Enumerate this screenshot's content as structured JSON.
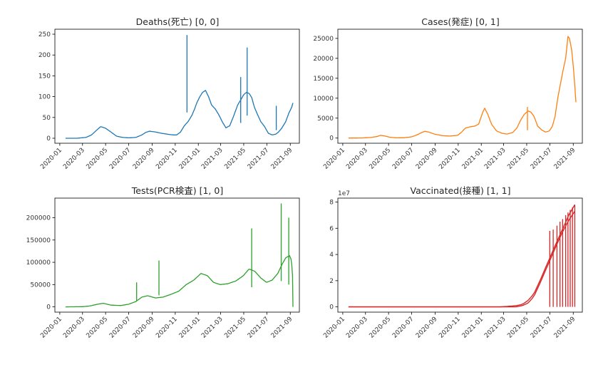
{
  "chart_data": [
    {
      "type": "line",
      "title": "Deaths(死亡) [0, 0]",
      "color": "#1f77b4",
      "x_ticks": [
        "2020-01",
        "2020-03",
        "2020-05",
        "2020-07",
        "2020-09",
        "2020-11",
        "2021-01",
        "2021-03",
        "2021-05",
        "2021-07",
        "2021-09"
      ],
      "xlim": [
        "2019-12-19",
        "2021-09-25"
      ],
      "ylim": [
        -12,
        262
      ],
      "y_ticks": [
        "0",
        "50",
        "100",
        "150",
        "200",
        "250"
      ],
      "y_tick_values": [
        0,
        50,
        100,
        150,
        200,
        250
      ],
      "series": [
        {
          "x": [
            "2020-01-16",
            "2020-02-15",
            "2020-03-10",
            "2020-03-25",
            "2020-04-08",
            "2020-04-18",
            "2020-05-01",
            "2020-05-15",
            "2020-05-30",
            "2020-06-15",
            "2020-07-01",
            "2020-07-20",
            "2020-08-05",
            "2020-08-15",
            "2020-08-25",
            "2020-09-10",
            "2020-09-25",
            "2020-10-10",
            "2020-10-25",
            "2020-11-05",
            "2020-11-15",
            "2020-11-25",
            "2020-12-05",
            "2020-12-15",
            "2020-12-22",
            "2020-12-28",
            "2021-01-05",
            "2021-01-12",
            "2021-01-20",
            "2021-01-28",
            "2021-02-05",
            "2021-02-15",
            "2021-02-25",
            "2021-03-05",
            "2021-03-15",
            "2021-03-25",
            "2021-04-05",
            "2021-04-15",
            "2021-04-25",
            "2021-05-01",
            "2021-05-08",
            "2021-05-15",
            "2021-05-22",
            "2021-05-29",
            "2021-06-05",
            "2021-06-15",
            "2021-06-25",
            "2021-07-05",
            "2021-07-15",
            "2021-07-25",
            "2021-08-01",
            "2021-08-10",
            "2021-08-20",
            "2021-08-28",
            "2021-09-05",
            "2021-09-08"
          ],
          "y": [
            0,
            0,
            2,
            8,
            20,
            28,
            24,
            15,
            5,
            2,
            1,
            2,
            8,
            14,
            17,
            15,
            12,
            10,
            8,
            8,
            15,
            30,
            40,
            55,
            70,
            85,
            100,
            110,
            115,
            100,
            80,
            70,
            55,
            40,
            25,
            30,
            55,
            80,
            95,
            105,
            110,
            108,
            98,
            75,
            60,
            40,
            28,
            12,
            8,
            10,
            15,
            25,
            40,
            60,
            75,
            85
          ]
        }
      ],
      "spikes": [
        {
          "x": "2020-12-02",
          "y": 248
        },
        {
          "x": "2021-05-10",
          "y": 218
        },
        {
          "x": "2021-04-23",
          "y": 147
        },
        {
          "x": "2021-07-26",
          "y": 78
        }
      ]
    },
    {
      "type": "line",
      "title": "Cases(発症) [0, 1]",
      "color": "#ff7f0e",
      "x_ticks": [
        "2020-01",
        "2020-03",
        "2020-05",
        "2020-07",
        "2020-09",
        "2020-11",
        "2021-01",
        "2021-03",
        "2021-05",
        "2021-07",
        "2021-09"
      ],
      "xlim": [
        "2019-12-19",
        "2021-09-25"
      ],
      "ylim": [
        -1300,
        27300
      ],
      "y_ticks": [
        "0",
        "5000",
        "10000",
        "15000",
        "20000",
        "25000"
      ],
      "y_tick_values": [
        0,
        5000,
        10000,
        15000,
        20000,
        25000
      ],
      "series": [
        {
          "x": [
            "2020-01-16",
            "2020-02-20",
            "2020-03-15",
            "2020-04-01",
            "2020-04-10",
            "2020-04-22",
            "2020-05-05",
            "2020-05-20",
            "2020-06-10",
            "2020-07-01",
            "2020-07-15",
            "2020-07-28",
            "2020-08-05",
            "2020-08-15",
            "2020-08-30",
            "2020-09-20",
            "2020-10-10",
            "2020-10-31",
            "2020-11-10",
            "2020-11-20",
            "2020-12-01",
            "2020-12-15",
            "2020-12-25",
            "2021-01-05",
            "2021-01-10",
            "2021-01-18",
            "2021-01-28",
            "2021-02-10",
            "2021-02-25",
            "2021-03-10",
            "2021-03-25",
            "2021-04-05",
            "2021-04-15",
            "2021-04-25",
            "2021-05-05",
            "2021-05-12",
            "2021-05-20",
            "2021-05-30",
            "2021-06-10",
            "2021-06-20",
            "2021-06-30",
            "2021-07-08",
            "2021-07-15",
            "2021-07-22",
            "2021-07-30",
            "2021-08-05",
            "2021-08-12",
            "2021-08-18",
            "2021-08-22",
            "2021-08-28",
            "2021-09-02",
            "2021-09-06",
            "2021-09-08"
          ],
          "y": [
            0,
            20,
            150,
            400,
            700,
            500,
            200,
            60,
            80,
            300,
            800,
            1400,
            1700,
            1500,
            1000,
            600,
            500,
            700,
            1500,
            2500,
            2800,
            3000,
            3500,
            6500,
            7500,
            6000,
            3500,
            1800,
            1200,
            1000,
            1400,
            2500,
            4500,
            6000,
            6800,
            6500,
            5500,
            3000,
            2000,
            1500,
            1800,
            3000,
            5500,
            10000,
            14000,
            17000,
            20000,
            25500,
            25000,
            22000,
            17000,
            12000,
            9000
          ]
        }
      ],
      "spikes": [
        {
          "x": "2021-05-03",
          "y": 7800
        }
      ]
    },
    {
      "type": "line",
      "title": "Tests(PCR検査) [1, 0]",
      "color": "#2ca02c",
      "x_ticks": [
        "2020-01",
        "2020-03",
        "2020-05",
        "2020-07",
        "2020-09",
        "2020-11",
        "2021-01",
        "2021-03",
        "2021-05",
        "2021-07",
        "2021-09"
      ],
      "xlim": [
        "2019-12-19",
        "2021-09-25"
      ],
      "ylim": [
        -11800,
        244000
      ],
      "y_ticks": [
        "0",
        "50000",
        "100000",
        "150000",
        "200000"
      ],
      "y_tick_values": [
        0,
        50000,
        100000,
        150000,
        200000
      ],
      "series": [
        {
          "x": [
            "2020-01-16",
            "2020-03-01",
            "2020-03-20",
            "2020-04-10",
            "2020-04-25",
            "2020-05-15",
            "2020-06-10",
            "2020-07-01",
            "2020-07-20",
            "2020-08-05",
            "2020-08-20",
            "2020-09-10",
            "2020-09-30",
            "2020-10-20",
            "2020-11-10",
            "2020-11-30",
            "2020-12-20",
            "2021-01-08",
            "2021-01-25",
            "2021-02-10",
            "2021-02-28",
            "2021-03-20",
            "2021-04-10",
            "2021-04-30",
            "2021-05-15",
            "2021-05-30",
            "2021-06-15",
            "2021-06-30",
            "2021-07-15",
            "2021-07-30",
            "2021-08-10",
            "2021-08-20",
            "2021-08-30",
            "2021-09-04",
            "2021-09-07",
            "2021-09-08"
          ],
          "y": [
            0,
            500,
            2000,
            6000,
            8000,
            4000,
            3000,
            6000,
            12000,
            22000,
            25000,
            20000,
            22000,
            28000,
            35000,
            50000,
            60000,
            75000,
            70000,
            55000,
            50000,
            52000,
            58000,
            70000,
            85000,
            80000,
            65000,
            55000,
            60000,
            75000,
            95000,
            110000,
            115000,
            105000,
            70000,
            0
          ]
        }
      ],
      "spikes": [
        {
          "x": "2020-07-22",
          "y": 55000
        },
        {
          "x": "2020-09-19",
          "y": 104000
        },
        {
          "x": "2021-05-22",
          "y": 176000
        },
        {
          "x": "2021-08-08",
          "y": 232000
        },
        {
          "x": "2021-08-28",
          "y": 200000
        }
      ]
    },
    {
      "type": "line",
      "title": "Vaccinated(接種) [1, 1]",
      "color": "#d62728",
      "exponent_label": "1e7",
      "x_ticks": [
        "2020-01",
        "2020-03",
        "2020-05",
        "2020-07",
        "2020-09",
        "2020-11",
        "2021-01",
        "2021-03",
        "2021-05",
        "2021-07",
        "2021-09"
      ],
      "xlim": [
        "2019-12-19",
        "2021-09-25"
      ],
      "ylim": [
        -0.4,
        8.3
      ],
      "y_ticks": [
        "0",
        "2",
        "4",
        "6",
        "8"
      ],
      "y_tick_values": [
        0,
        2,
        4,
        6,
        8
      ],
      "series": [
        {
          "x": [
            "2020-01-16",
            "2021-02-17",
            "2021-03-15",
            "2021-04-05",
            "2021-04-20",
            "2021-05-05",
            "2021-05-20",
            "2021-06-05",
            "2021-06-20",
            "2021-07-05",
            "2021-07-20",
            "2021-08-05",
            "2021-08-20",
            "2021-09-05"
          ],
          "y": [
            0,
            0,
            0.05,
            0.1,
            0.2,
            0.5,
            1.0,
            2.0,
            3.0,
            4.0,
            5.0,
            6.0,
            7.0,
            7.8
          ]
        },
        {
          "x": [
            "2020-01-16",
            "2021-02-17",
            "2021-04-01",
            "2021-04-20",
            "2021-05-05",
            "2021-05-20",
            "2021-06-05",
            "2021-06-20",
            "2021-07-05",
            "2021-07-20",
            "2021-08-05",
            "2021-08-20",
            "2021-09-05"
          ],
          "y": [
            0,
            0,
            0,
            0.1,
            0.3,
            0.8,
            1.8,
            2.8,
            3.8,
            4.8,
            5.8,
            6.6,
            7.3
          ]
        }
      ],
      "spikes": []
    }
  ]
}
